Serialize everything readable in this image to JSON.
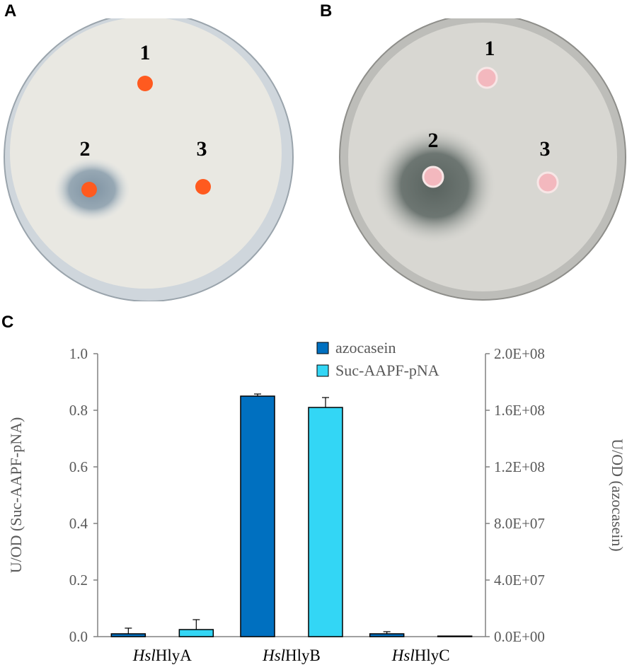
{
  "panels": {
    "a": {
      "letter": "A",
      "wells": [
        "1",
        "2",
        "3"
      ]
    },
    "b": {
      "letter": "B",
      "wells": [
        "1",
        "2",
        "3"
      ]
    },
    "c": {
      "letter": "C"
    }
  },
  "chart_data": {
    "type": "bar",
    "categories": [
      {
        "italic": "Hsl",
        "rest": "HlyA"
      },
      {
        "italic": "Hsl",
        "rest": "HlyB"
      },
      {
        "italic": "Hsl",
        "rest": "HlyC"
      }
    ],
    "series": [
      {
        "name": "azocasein",
        "axis": "right",
        "color": "#0070c0",
        "values": [
          2000000,
          170000000,
          2000000
        ],
        "errors": [
          4000000,
          1500000,
          1500000
        ]
      },
      {
        "name": "Suc-AAPF-pNA",
        "axis": "left",
        "color": "#33d6f5",
        "values": [
          0.025,
          0.81,
          0.002
        ],
        "errors": [
          0.035,
          0.035,
          0.0
        ]
      }
    ],
    "ylabel_left": "U/OD (Suc-AAPF-pNA)",
    "ylabel_right": "U/OD (azocasein)",
    "ylim_left": [
      0,
      1.0
    ],
    "ylim_right": [
      0,
      200000000
    ],
    "yticks_left": [
      "0.0",
      "0.2",
      "0.4",
      "0.6",
      "0.8",
      "1.0"
    ],
    "yticks_right": [
      "0.0E+00",
      "4.0E+07",
      "8.0E+07",
      "1.2E+08",
      "1.6E+08",
      "2.0E+08"
    ],
    "legend": [
      "azocasein",
      "Suc-AAPF-pNA"
    ],
    "legend_position": "top-right",
    "grid": false
  }
}
